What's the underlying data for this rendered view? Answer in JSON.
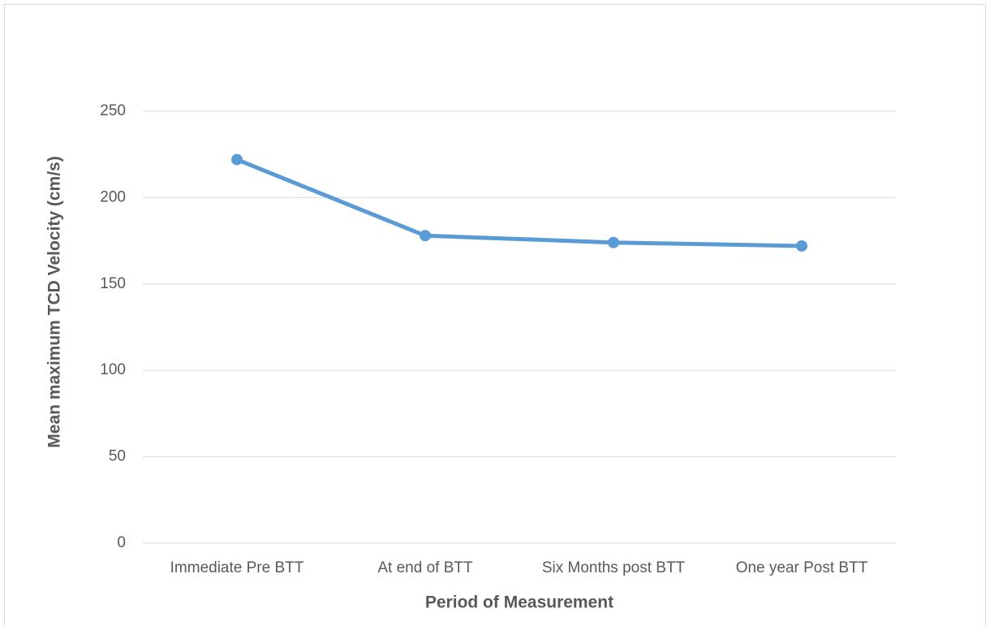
{
  "chart_data": {
    "type": "line",
    "x_label": "Period of Measurement",
    "y_label": "Mean maximum TCD Velocity (cm/s)",
    "categories": [
      "Immediate Pre BTT",
      "At end of BTT",
      "Six Months post BTT",
      "One year Post BTT"
    ],
    "series": [
      {
        "name": "Mean maximum TCD Velocity",
        "color": "#5b9bd5",
        "values": [
          222,
          178,
          174,
          172
        ]
      }
    ],
    "ylim": [
      0,
      250
    ],
    "yticks": [
      0,
      50,
      100,
      150,
      200,
      250
    ],
    "grid": true,
    "legend": false
  }
}
